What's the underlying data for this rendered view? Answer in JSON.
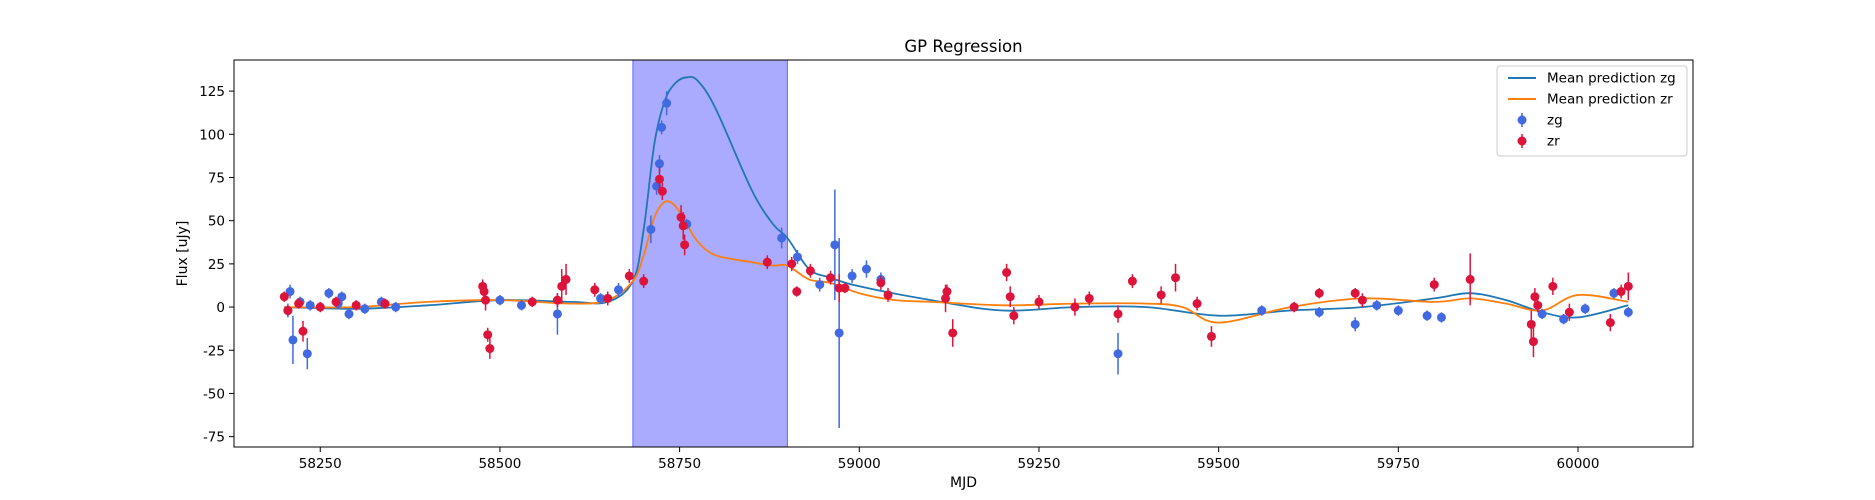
{
  "chart_data": {
    "type": "scatter",
    "title": "GP Regression",
    "xlabel": "MJD",
    "ylabel": "Flux [uJy]",
    "xlim": [
      58130,
      60160
    ],
    "ylim": [
      -81,
      143
    ],
    "xticks": [
      58250,
      58500,
      58750,
      59000,
      59250,
      59500,
      59750,
      60000
    ],
    "yticks": [
      -75,
      -50,
      -25,
      0,
      25,
      50,
      75,
      100,
      125
    ],
    "grid": false,
    "legend_position": "top-right",
    "shaded_region": {
      "x_start": 58685,
      "x_end": 58900,
      "color": "#aaaaff"
    },
    "series": [
      {
        "name": "Mean prediction zg",
        "kind": "line",
        "color": "#1f77b4",
        "x": [
          58200,
          58300,
          58400,
          58500,
          58600,
          58650,
          58685,
          58700,
          58715,
          58730,
          58745,
          58760,
          58775,
          58800,
          58850,
          58880,
          58900,
          58930,
          58960,
          59000,
          59100,
          59200,
          59300,
          59400,
          59500,
          59600,
          59700,
          59800,
          59850,
          59900,
          59950,
          60000,
          60070
        ],
        "values": [
          0,
          -1,
          1,
          4,
          3,
          3,
          15,
          45,
          95,
          120,
          130,
          133,
          131,
          115,
          68,
          48,
          40,
          22,
          17,
          12,
          4,
          -2,
          0,
          0,
          -5,
          -2,
          0,
          5,
          8,
          4,
          -3,
          -6,
          1
        ]
      },
      {
        "name": "Mean prediction zr",
        "kind": "line",
        "color": "#ff7f0e",
        "x": [
          58200,
          58300,
          58400,
          58500,
          58600,
          58650,
          58685,
          58700,
          58715,
          58730,
          58745,
          58760,
          58775,
          58800,
          58850,
          58880,
          58900,
          58930,
          58960,
          59000,
          59050,
          59100,
          59200,
          59300,
          59400,
          59450,
          59500,
          59600,
          59700,
          59800,
          59850,
          59900,
          59950,
          60000,
          60070
        ],
        "values": [
          0,
          0,
          3,
          4,
          2,
          4,
          15,
          30,
          52,
          61,
          58,
          48,
          38,
          30,
          26,
          24,
          24,
          16,
          14,
          8,
          4,
          3,
          1,
          2,
          2,
          0,
          -9,
          0,
          5,
          3,
          5,
          2,
          -2,
          7,
          3
        ]
      },
      {
        "name": "zg",
        "kind": "errorbar",
        "color": "#4169e1",
        "x": [
          58205,
          58208,
          58212,
          58222,
          58232,
          58236,
          58262,
          58275,
          58280,
          58290,
          58312,
          58335,
          58355,
          58500,
          58530,
          58580,
          58640,
          58665,
          58710,
          58718,
          58722,
          58725,
          58732,
          58760,
          58892,
          58914,
          58945,
          58966,
          58972,
          58990,
          59010,
          59030,
          59360,
          59560,
          59640,
          59690,
          59720,
          59750,
          59790,
          59810,
          59950,
          59980,
          60010,
          60050,
          60070
        ],
        "values": [
          -2,
          9,
          -19,
          3,
          -27,
          1,
          8,
          2,
          6,
          -4,
          -1,
          3,
          0,
          4,
          1,
          -4,
          5,
          10,
          45,
          70,
          83,
          104,
          118,
          48,
          40,
          29,
          13,
          36,
          -15,
          18,
          22,
          16,
          -27,
          -2,
          -3,
          -10,
          1,
          -2,
          -5,
          -6,
          -4,
          -7,
          -1,
          8,
          -3
        ],
        "errors": [
          4,
          4,
          14,
          3,
          9,
          3,
          3,
          3,
          3,
          3,
          3,
          3,
          3,
          3,
          3,
          12,
          3,
          4,
          8,
          5,
          5,
          4,
          7,
          3,
          6,
          4,
          4,
          32,
          55,
          4,
          5,
          4,
          12,
          3,
          3,
          4,
          3,
          3,
          3,
          3,
          3,
          3,
          3,
          3,
          3
        ]
      },
      {
        "name": "zr",
        "kind": "errorbar",
        "color": "#dc143c",
        "x": [
          58200,
          58205,
          58220,
          58226,
          58250,
          58272,
          58300,
          58340,
          58476,
          58478,
          58480,
          58483,
          58486,
          58545,
          58580,
          58586,
          58592,
          58632,
          58650,
          58680,
          58700,
          58722,
          58726,
          58752,
          58755,
          58757,
          58872,
          58906,
          58913,
          58932,
          58960,
          58972,
          58980,
          59030,
          59040,
          59120,
          59122,
          59130,
          59205,
          59210,
          59215,
          59250,
          59300,
          59320,
          59360,
          59380,
          59420,
          59440,
          59470,
          59490,
          59605,
          59640,
          59690,
          59700,
          59800,
          59850,
          59935,
          59938,
          59940,
          59944,
          59965,
          59988,
          60045,
          60060,
          60070
        ],
        "values": [
          6,
          -2,
          2,
          -14,
          0,
          3,
          1,
          2,
          12,
          9,
          4,
          -16,
          -24,
          3,
          4,
          12,
          16,
          10,
          5,
          18,
          15,
          74,
          67,
          52,
          47,
          36,
          26,
          25,
          9,
          21,
          17,
          11,
          11,
          14,
          7,
          5,
          9,
          -15,
          20,
          6,
          -5,
          3,
          0,
          5,
          -4,
          15,
          7,
          17,
          2,
          -17,
          0,
          8,
          8,
          4,
          13,
          16,
          -10,
          -20,
          6,
          1,
          12,
          -3,
          -9,
          9,
          12
        ],
        "errors": [
          3,
          3,
          3,
          6,
          3,
          3,
          3,
          3,
          4,
          4,
          6,
          4,
          6,
          3,
          4,
          10,
          9,
          4,
          4,
          4,
          4,
          7,
          5,
          7,
          8,
          6,
          4,
          4,
          3,
          4,
          4,
          8,
          3,
          4,
          4,
          8,
          4,
          8,
          5,
          6,
          5,
          4,
          5,
          4,
          5,
          4,
          5,
          8,
          4,
          6,
          3,
          3,
          3,
          4,
          4,
          15,
          8,
          9,
          5,
          4,
          5,
          5,
          5,
          4,
          8
        ]
      }
    ],
    "legend": [
      {
        "label": "Mean prediction zg",
        "marker": "line",
        "color": "#1f77b4"
      },
      {
        "label": "Mean prediction zr",
        "marker": "line",
        "color": "#ff7f0e"
      },
      {
        "label": "zg",
        "marker": "point",
        "color": "#4169e1"
      },
      {
        "label": "zr",
        "marker": "point",
        "color": "#dc143c"
      }
    ]
  }
}
